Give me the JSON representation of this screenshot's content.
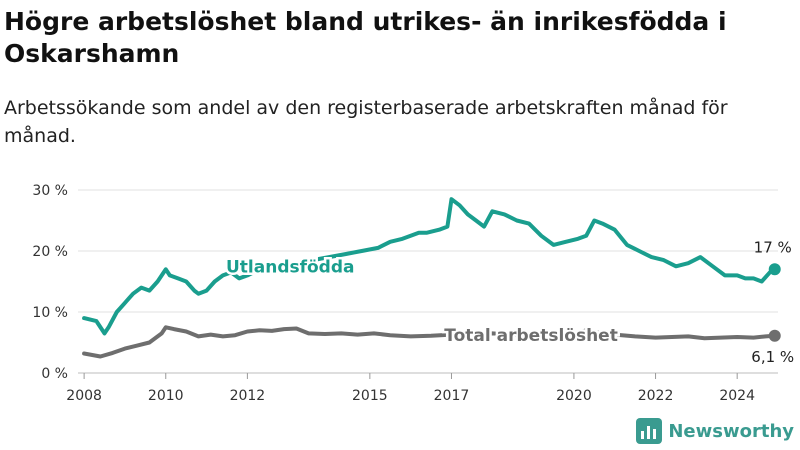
{
  "title": "Högre arbetslöshet bland utrikes- än inrikesfödda i Oskarshamn",
  "subtitle": "Arbetssökande som andel av den registerbaserade arbetskraften månad för månad.",
  "brand": {
    "name": "Newsworthy",
    "icon": "bar-chart-logo-icon",
    "color": "#3a9b90"
  },
  "chart_data": {
    "type": "line",
    "title": "Högre arbetslöshet bland utrikes- än inrikesfödda i Oskarshamn",
    "subtitle": "Arbetssökande som andel av den registerbaserade arbetskraften månad för månad.",
    "xlabel": "",
    "ylabel": "",
    "x_unit": "year",
    "xlim": [
      2007.85,
      2025.0
    ],
    "ylim": [
      0,
      30
    ],
    "y_ticks": [
      0,
      10,
      20,
      30
    ],
    "y_tick_labels": [
      "0 %",
      "10 %",
      "20 %",
      "30 %"
    ],
    "x_ticks": [
      2008,
      2010,
      2012,
      2015,
      2017,
      2020,
      2022,
      2024
    ],
    "x_tick_labels": [
      "2008",
      "2010",
      "2012",
      "2015",
      "2017",
      "2020",
      "2022",
      "2024"
    ],
    "grid": "horizontal",
    "legend": "inline labels",
    "series": [
      {
        "name": "Utlandsfödda",
        "color": "#1a9e8e",
        "end_label": "17 %",
        "end_marker": true,
        "x": [
          2008.0,
          2008.3,
          2008.5,
          2008.6,
          2008.8,
          2009.0,
          2009.2,
          2009.4,
          2009.6,
          2009.8,
          2010.0,
          2010.1,
          2010.3,
          2010.5,
          2010.7,
          2010.8,
          2011.0,
          2011.2,
          2011.4,
          2011.6,
          2011.8,
          2012.0,
          2012.3,
          2012.6,
          2012.9,
          2013.2,
          2013.6,
          2014.0,
          2014.4,
          2014.8,
          2015.2,
          2015.5,
          2015.8,
          2016.0,
          2016.2,
          2016.4,
          2016.7,
          2016.9,
          2017.0,
          2017.2,
          2017.4,
          2017.6,
          2017.8,
          2018.0,
          2018.3,
          2018.6,
          2018.9,
          2019.2,
          2019.5,
          2019.8,
          2020.1,
          2020.3,
          2020.5,
          2020.7,
          2021.0,
          2021.3,
          2021.6,
          2021.9,
          2022.2,
          2022.5,
          2022.8,
          2023.1,
          2023.4,
          2023.7,
          2024.0,
          2024.2,
          2024.4,
          2024.6,
          2024.8,
          2024.92
        ],
        "y": [
          9.0,
          8.5,
          6.5,
          7.5,
          10.0,
          11.5,
          13.0,
          14.0,
          13.5,
          15.0,
          17.0,
          16.0,
          15.5,
          15.0,
          13.5,
          13.0,
          13.5,
          15.0,
          16.0,
          16.5,
          15.5,
          16.0,
          17.0,
          16.5,
          17.5,
          18.0,
          18.5,
          19.0,
          19.5,
          20.0,
          20.5,
          21.5,
          22.0,
          22.5,
          23.0,
          23.0,
          23.5,
          24.0,
          28.5,
          27.5,
          26.0,
          25.0,
          24.0,
          26.5,
          26.0,
          25.0,
          24.5,
          22.5,
          21.0,
          21.5,
          22.0,
          22.5,
          25.0,
          24.5,
          23.5,
          21.0,
          20.0,
          19.0,
          18.5,
          17.5,
          18.0,
          19.0,
          17.5,
          16.0,
          16.0,
          15.5,
          15.5,
          15.0,
          16.5,
          17.0
        ]
      },
      {
        "name": "Total arbetslöshet",
        "color": "#6e6e6e",
        "end_label": "6,1 %",
        "end_marker": true,
        "x": [
          2008.0,
          2008.4,
          2008.7,
          2009.0,
          2009.3,
          2009.6,
          2009.9,
          2010.0,
          2010.2,
          2010.5,
          2010.8,
          2011.1,
          2011.4,
          2011.7,
          2012.0,
          2012.3,
          2012.6,
          2012.9,
          2013.2,
          2013.5,
          2013.9,
          2014.3,
          2014.7,
          2015.1,
          2015.5,
          2016.0,
          2016.5,
          2017.0,
          2017.5,
          2018.0,
          2018.5,
          2019.0,
          2019.5,
          2020.0,
          2020.3,
          2020.6,
          2021.0,
          2021.5,
          2022.0,
          2022.4,
          2022.8,
          2023.2,
          2023.6,
          2024.0,
          2024.4,
          2024.7,
          2024.92
        ],
        "y": [
          3.2,
          2.7,
          3.3,
          4.0,
          4.5,
          5.0,
          6.5,
          7.5,
          7.2,
          6.8,
          6.0,
          6.3,
          6.0,
          6.2,
          6.8,
          7.0,
          6.9,
          7.2,
          7.3,
          6.5,
          6.4,
          6.5,
          6.3,
          6.5,
          6.2,
          6.0,
          6.1,
          6.3,
          6.2,
          6.5,
          6.3,
          6.1,
          6.0,
          6.4,
          7.0,
          6.6,
          6.3,
          6.0,
          5.8,
          5.9,
          6.0,
          5.7,
          5.8,
          5.9,
          5.8,
          6.0,
          6.1
        ]
      }
    ]
  }
}
